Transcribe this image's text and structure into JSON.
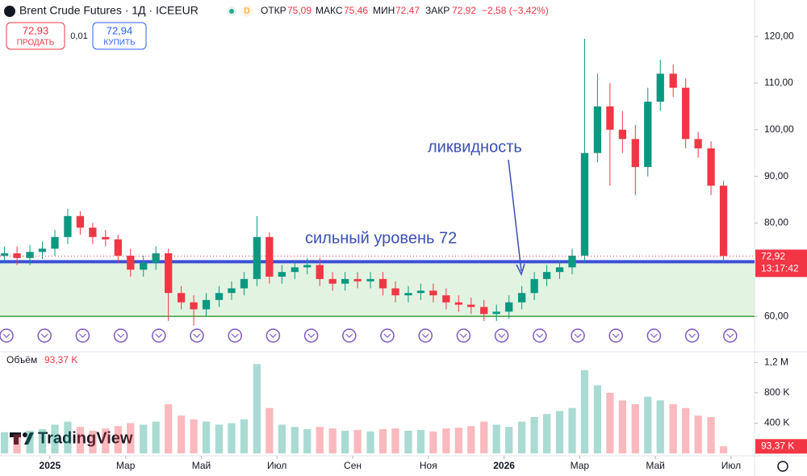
{
  "chart_data": {
    "type": "candlestick",
    "title": "Brent Crude Futures · 1Д · ICEEUR",
    "ohlc_labels": {
      "open": "ОТКР",
      "high": "МАКС",
      "low": "МИН",
      "close": "ЗАКР"
    },
    "ohlc_values": {
      "open": "75,09",
      "high": "75,46",
      "low": "72,47",
      "close": "72,92"
    },
    "change": "−2,58 (−3,42%)",
    "sell": {
      "price": "72,93",
      "label": "ПРОДАТЬ"
    },
    "spread": "0,01",
    "buy": {
      "price": "72,94",
      "label": "КУПИТЬ"
    },
    "last_price": 72.92,
    "last_price_label": "72,92",
    "countdown": "13:17:42",
    "annotations": [
      "ликвидность",
      "сильный уровень 72"
    ],
    "watermark": "TradingView",
    "x": [
      -1.2,
      -0.87,
      -0.53,
      -0.2,
      0.13,
      0.47,
      0.8,
      1.13,
      1.47,
      1.8,
      2.13,
      2.47,
      2.8,
      3.13,
      3.47,
      3.8,
      4.13,
      4.47,
      4.8,
      5.13,
      5.47,
      5.8,
      6.13,
      6.47,
      6.8,
      7.13,
      7.47,
      7.8,
      8.13,
      8.47,
      8.8,
      9.13,
      9.47,
      9.8,
      10.13,
      10.47,
      10.8,
      11.13,
      11.47,
      11.8,
      12.13,
      12.47,
      12.8,
      13.13,
      13.47,
      13.8,
      14.13,
      14.47,
      14.8,
      15.13,
      15.47,
      15.8,
      16.13,
      16.47,
      16.8,
      17.13,
      17.47,
      17.8
    ],
    "open": [
      73,
      73.5,
      72.5,
      73.8,
      74.5,
      77,
      81.5,
      79,
      77,
      76.5,
      73,
      70,
      71.5,
      73.5,
      65,
      63,
      61.5,
      63.5,
      65,
      66,
      68,
      77,
      68.5,
      69.5,
      70.5,
      71,
      68,
      67,
      68,
      67.5,
      68,
      66,
      64.5,
      65,
      65.5,
      64.5,
      63,
      62.5,
      62,
      60.5,
      61,
      63,
      65,
      68,
      69.5,
      70.5,
      73,
      95,
      105,
      100,
      98,
      92,
      106,
      112,
      109,
      98,
      96,
      88
    ],
    "high": [
      75,
      75,
      75.3,
      76,
      78.5,
      83,
      82.5,
      80,
      78.5,
      77.5,
      74.5,
      73,
      75,
      74.5,
      66.5,
      64.5,
      65,
      66.5,
      67.5,
      69.5,
      81.5,
      78,
      71,
      72,
      72.5,
      72.5,
      69.5,
      69.5,
      69.5,
      69.5,
      69.5,
      67.5,
      66.5,
      67,
      67,
      66,
      64.5,
      64,
      63.5,
      62.5,
      64.5,
      66.5,
      69.5,
      71,
      72,
      74.5,
      119.5,
      112,
      110,
      104,
      101,
      109,
      115,
      114,
      111,
      99.5,
      97.5,
      89
    ],
    "low": [
      71.5,
      71,
      71,
      72.3,
      73,
      75.5,
      77.5,
      75.5,
      75,
      71.5,
      68.5,
      68.5,
      70,
      59,
      61.5,
      58,
      60,
      62,
      63.5,
      64.5,
      66.5,
      67,
      67,
      68,
      69,
      66.5,
      65.5,
      65.5,
      66,
      66,
      64.5,
      63,
      63,
      63.5,
      63,
      61.5,
      61,
      60.5,
      59,
      59,
      59.5,
      61.5,
      63.5,
      66.5,
      68,
      69,
      71.5,
      93,
      88,
      95,
      86,
      90,
      104,
      107,
      96,
      94,
      86,
      71.5
    ],
    "close": [
      73.5,
      72.5,
      73.8,
      74.5,
      77,
      81.5,
      79,
      77,
      76.5,
      73,
      70,
      71.5,
      73.5,
      65,
      63,
      61.5,
      63.5,
      65,
      66,
      68,
      77,
      68.5,
      69.5,
      70.5,
      71,
      68,
      67,
      68,
      67.5,
      68,
      66,
      64.5,
      65,
      65.5,
      64.5,
      63,
      62.5,
      62,
      60.5,
      61,
      63,
      65,
      68,
      69.5,
      70.5,
      73,
      95,
      105,
      100,
      98,
      92,
      106,
      112,
      109,
      98,
      96,
      88,
      72.92
    ],
    "up_color": "#089981",
    "down_color": "#f23645",
    "xlim": [
      -1.32,
      18.62
    ],
    "xticks": [
      {
        "value": 0,
        "label": "2025"
      },
      {
        "value": 2,
        "label": "Мар"
      },
      {
        "value": 4,
        "label": "Май"
      },
      {
        "value": 6,
        "label": "Июл"
      },
      {
        "value": 8,
        "label": "Сен"
      },
      {
        "value": 10,
        "label": "Ноя"
      },
      {
        "value": 12,
        "label": "2026"
      },
      {
        "value": 14,
        "label": "Мар"
      },
      {
        "value": 16,
        "label": "Май"
      },
      {
        "value": 18,
        "label": "Июл"
      }
    ],
    "ylim": [
      53.1,
      127.8
    ],
    "yticks": [
      {
        "value": 60,
        "label": "60,00"
      },
      {
        "value": 80,
        "label": "80,00"
      },
      {
        "value": 90,
        "label": "90,00"
      },
      {
        "value": 100,
        "label": "100,00"
      },
      {
        "value": 110,
        "label": "110,00"
      },
      {
        "value": 120,
        "label": "120,00"
      }
    ],
    "levels": [
      {
        "value": 71.7,
        "color": "#3d4fd8"
      },
      {
        "value": 60,
        "color": "#3a9e3a"
      }
    ],
    "zone_color": "#e3f3e1",
    "volume": {
      "title": "Объём",
      "last_label": "93,37 K",
      "values": [
        280000,
        250000,
        300000,
        320000,
        380000,
        420000,
        350000,
        300000,
        330000,
        360000,
        400000,
        380000,
        420000,
        650000,
        500000,
        450000,
        420000,
        380000,
        400000,
        450000,
        1180000,
        600000,
        380000,
        350000,
        320000,
        350000,
        330000,
        300000,
        310000,
        290000,
        320000,
        330000,
        300000,
        310000,
        290000,
        330000,
        340000,
        360000,
        420000,
        380000,
        350000,
        420000,
        480000,
        520000,
        560000,
        600000,
        1100000,
        900000,
        800000,
        700000,
        650000,
        750000,
        700000,
        650000,
        600000,
        500000,
        480000,
        93370
      ],
      "ylim": [
        0,
        1300000
      ],
      "yticks": [
        {
          "value": 400000,
          "label": "400 K"
        },
        {
          "value": 800000,
          "label": "800 K"
        },
        {
          "value": 1200000,
          "label": "1,2 M"
        }
      ]
    },
    "grid": false
  }
}
